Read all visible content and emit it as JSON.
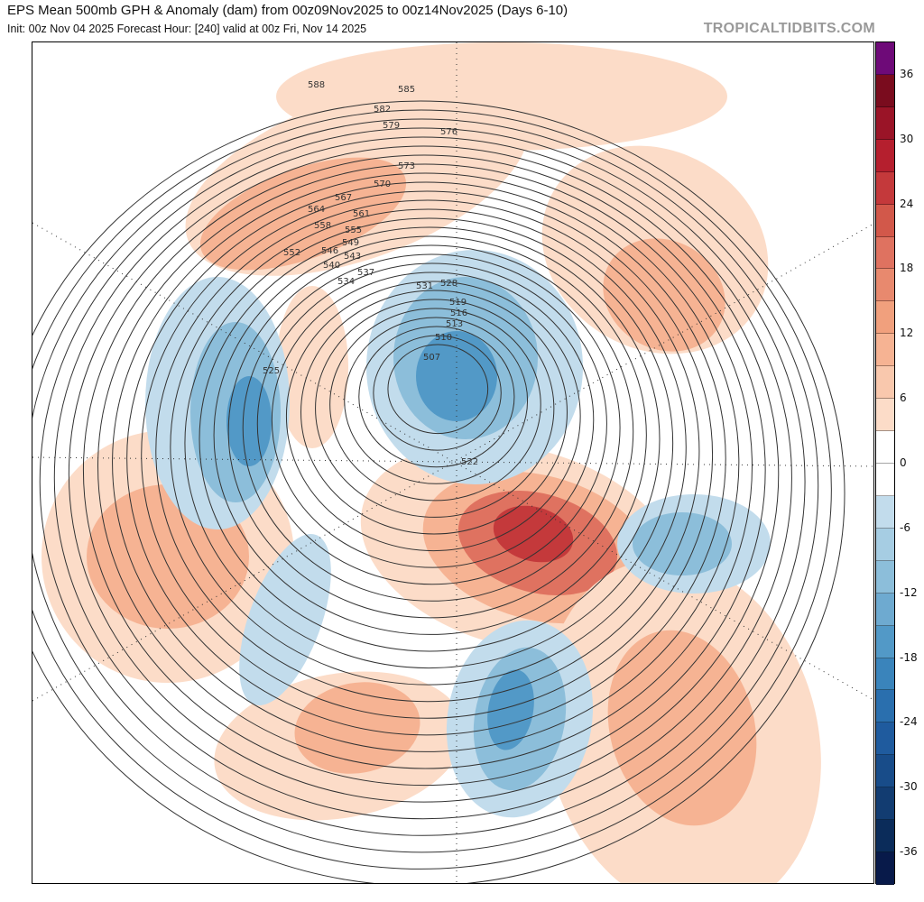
{
  "header": {
    "title": "EPS Mean 500mb GPH & Anomaly (dam) from 00z09Nov2025 to 00z14Nov2025 (Days 6-10)",
    "subtitle": "Init: 00z Nov 04 2025   Forecast Hour: [240]   valid at 00z Fri, Nov 14 2025",
    "brand": "TROPICALTIDBITS.COM"
  },
  "colorbar": {
    "ticks": [
      "36",
      "30",
      "24",
      "18",
      "12",
      "6",
      "0",
      "-6",
      "-12",
      "-18",
      "-24",
      "-30",
      "-36"
    ],
    "colors": [
      "#6e0a78",
      "#7a0c1e",
      "#9a1427",
      "#b51f2e",
      "#c4393b",
      "#d2584a",
      "#df7260",
      "#e8896e",
      "#f1a07d",
      "#f6b393",
      "#f9c8ad",
      "#fcdcc8",
      "#ffffff",
      "#ffffff",
      "#c2dcec",
      "#a6cde3",
      "#8cbeda",
      "#6eaad0",
      "#5299c7",
      "#3a84bb",
      "#2a6fae",
      "#1f5b9e",
      "#184c89",
      "#123c71",
      "#0b2c5a",
      "#081a4a"
    ]
  },
  "contour_labels": [
    "588",
    "585",
    "582",
    "579",
    "576",
    "573",
    "570",
    "567",
    "564",
    "561",
    "558",
    "555",
    "552",
    "549",
    "546",
    "543",
    "540",
    "537",
    "534",
    "531",
    "528",
    "525",
    "522",
    "519",
    "516",
    "513",
    "510",
    "507"
  ],
  "anomaly_colors": {
    "warm_light": "#fcdcc8",
    "warm_mid": "#f6b393",
    "warm_strong": "#df7260",
    "warm_core": "#c4393b",
    "cool_light": "#c2dcec",
    "cool_mid": "#8cbeda",
    "cool_strong": "#5299c7"
  }
}
